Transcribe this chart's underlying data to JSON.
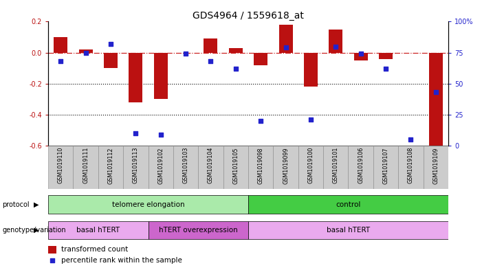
{
  "title": "GDS4964 / 1559618_at",
  "samples": [
    "GSM1019110",
    "GSM1019111",
    "GSM1019112",
    "GSM1019113",
    "GSM1019102",
    "GSM1019103",
    "GSM1019104",
    "GSM1019105",
    "GSM1019098",
    "GSM1019099",
    "GSM1019100",
    "GSM1019101",
    "GSM1019106",
    "GSM1019107",
    "GSM1019108",
    "GSM1019109"
  ],
  "transformed_count": [
    0.1,
    0.02,
    -0.1,
    -0.32,
    -0.3,
    0.0,
    0.09,
    0.03,
    -0.08,
    0.18,
    -0.22,
    0.15,
    -0.05,
    -0.04,
    0.0,
    -0.6
  ],
  "percentile_rank": [
    68,
    75,
    82,
    10,
    9,
    74,
    68,
    62,
    20,
    79,
    21,
    80,
    74,
    62,
    5,
    43
  ],
  "bar_color": "#bb1111",
  "dot_color": "#2222cc",
  "dashed_line_color": "#cc2222",
  "ylim_left": [
    -0.6,
    0.2
  ],
  "ylim_right": [
    0,
    100
  ],
  "yticks_left": [
    -0.6,
    -0.4,
    -0.2,
    0.0,
    0.2
  ],
  "yticks_right": [
    0,
    25,
    50,
    75,
    100
  ],
  "ytick_labels_right": [
    "0",
    "25",
    "50",
    "75",
    "100%"
  ],
  "protocol_groups": [
    {
      "label": "telomere elongation",
      "start": 0,
      "end": 7,
      "color": "#aaeaaa"
    },
    {
      "label": "control",
      "start": 8,
      "end": 15,
      "color": "#44cc44"
    }
  ],
  "genotype_groups": [
    {
      "label": "basal hTERT",
      "start": 0,
      "end": 3,
      "color": "#eaaaee"
    },
    {
      "label": "hTERT overexpression",
      "start": 4,
      "end": 7,
      "color": "#cc66cc"
    },
    {
      "label": "basal hTERT",
      "start": 8,
      "end": 15,
      "color": "#eaaaee"
    }
  ],
  "legend_bar_label": "transformed count",
  "legend_dot_label": "percentile rank within the sample",
  "title_fontsize": 10,
  "tick_fontsize": 7,
  "bar_width": 0.55,
  "sample_col_color": "#cccccc",
  "sample_col_edge": "#888888"
}
